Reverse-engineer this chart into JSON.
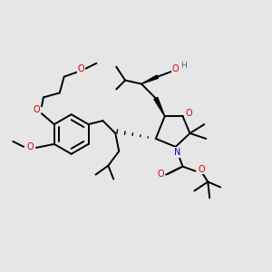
{
  "bg_color": "#e6e6e6",
  "atom_colors": {
    "O": "#dd0000",
    "N": "#0000bb",
    "H": "#337777",
    "C": "#000000"
  },
  "bond_lw": 1.4,
  "font_size": 7.0
}
